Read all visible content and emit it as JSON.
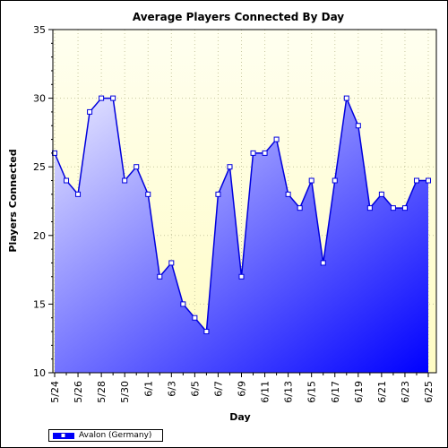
{
  "colors": {
    "plot_bg_top": "#fffff0",
    "plot_bg_bottom": "#fffcc4",
    "area_light": "#e8e8ff",
    "area_dark": "#0000ff",
    "line": "#0000dd",
    "marker_fill": "#ffffff",
    "grid": "#c8c8a0"
  },
  "chart_data": {
    "type": "area",
    "title": "Average Players Connected By Day",
    "xlabel": "Day",
    "ylabel": "Players Connected",
    "ylim": [
      10,
      35
    ],
    "yticks": [
      "10",
      "15",
      "20",
      "25",
      "30",
      "35"
    ],
    "grid": true,
    "legend_position": "bottom-left",
    "x_tick_labels": [
      "5/24",
      "5/26",
      "5/28",
      "5/30",
      "6/1",
      "6/3",
      "6/5",
      "6/7",
      "6/9",
      "6/11",
      "6/13",
      "6/15",
      "6/17",
      "6/19",
      "6/21",
      "6/23",
      "6/25"
    ],
    "x": [
      "5/24",
      "5/25",
      "5/26",
      "5/27",
      "5/28",
      "5/29",
      "5/30",
      "5/31",
      "6/1",
      "6/2",
      "6/3",
      "6/4",
      "6/5",
      "6/6",
      "6/7",
      "6/8",
      "6/9",
      "6/10",
      "6/11",
      "6/12",
      "6/13",
      "6/14",
      "6/15",
      "6/16",
      "6/17",
      "6/18",
      "6/19",
      "6/20",
      "6/21",
      "6/22",
      "6/23",
      "6/24",
      "6/25"
    ],
    "series": [
      {
        "name": "Avalon (Germany)",
        "values": [
          26,
          24,
          23,
          29,
          30,
          30,
          24,
          25,
          23,
          17,
          18,
          15,
          14,
          13,
          23,
          25,
          17,
          26,
          26,
          27,
          23,
          22,
          24,
          18,
          24,
          30,
          28,
          22,
          23,
          22,
          22,
          24,
          24
        ]
      }
    ]
  }
}
